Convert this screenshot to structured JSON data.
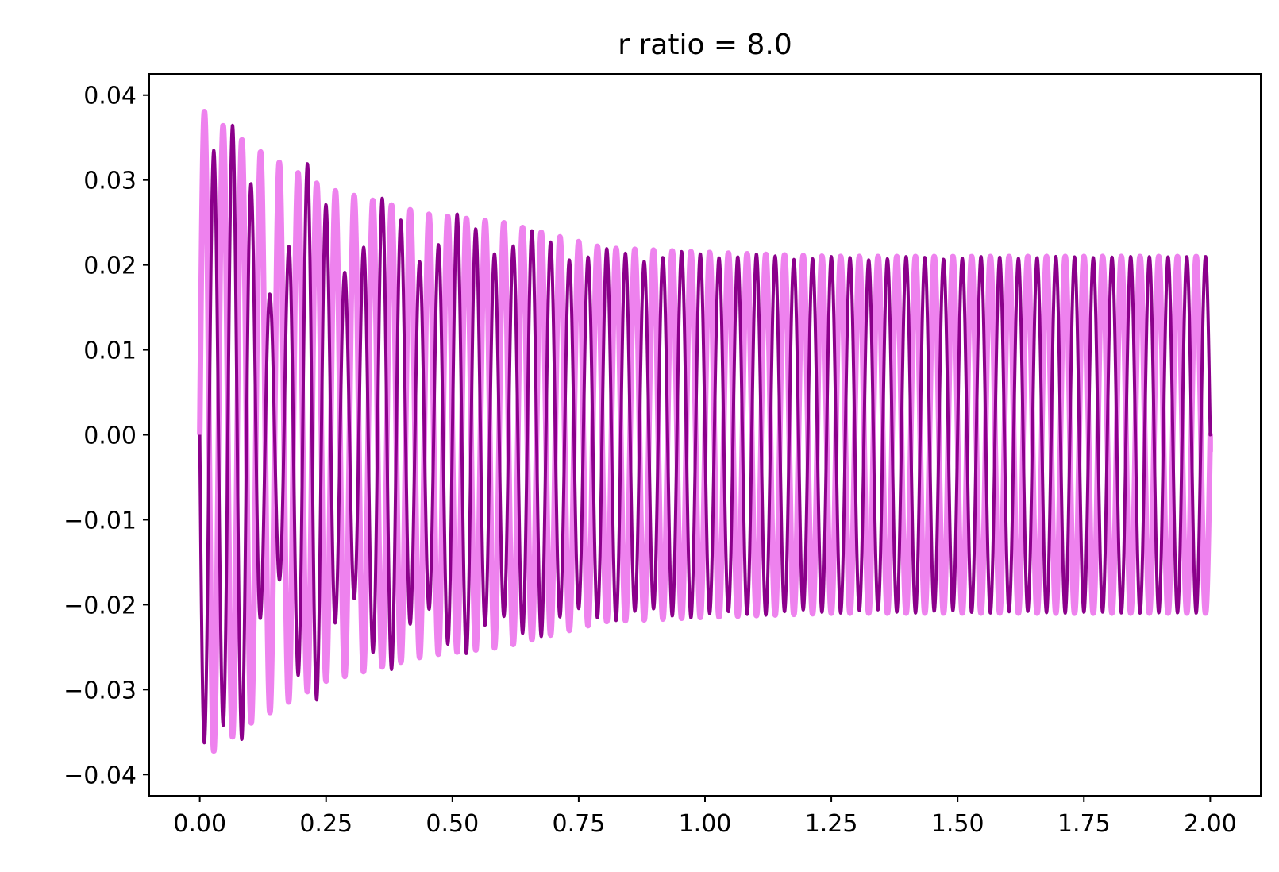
{
  "chart_data": {
    "type": "line",
    "title": "r ratio = 8.0",
    "xlabel": "",
    "ylabel": "",
    "xlim": [
      -0.1,
      2.1
    ],
    "ylim": [
      -0.0425,
      0.0425
    ],
    "grid": false,
    "x_ticks": [
      {
        "value": 0.0,
        "label": "0.00"
      },
      {
        "value": 0.25,
        "label": "0.25"
      },
      {
        "value": 0.5,
        "label": "0.50"
      },
      {
        "value": 0.75,
        "label": "0.75"
      },
      {
        "value": 1.0,
        "label": "1.00"
      },
      {
        "value": 1.25,
        "label": "1.25"
      },
      {
        "value": 1.5,
        "label": "1.50"
      },
      {
        "value": 1.75,
        "label": "1.75"
      },
      {
        "value": 2.0,
        "label": "2.00"
      }
    ],
    "y_ticks": [
      {
        "value": 0.04,
        "label": "0.04"
      },
      {
        "value": 0.03,
        "label": "0.03"
      },
      {
        "value": 0.02,
        "label": "0.02"
      },
      {
        "value": 0.01,
        "label": "0.01"
      },
      {
        "value": 0.0,
        "label": "0.00"
      },
      {
        "value": -0.01,
        "label": "−0.01"
      },
      {
        "value": -0.02,
        "label": "−0.02"
      },
      {
        "value": -0.03,
        "label": "−0.03"
      },
      {
        "value": -0.04,
        "label": "−0.04"
      }
    ],
    "series": [
      {
        "color": "#ee82ee",
        "x_range": [
          0.0,
          2.0
        ],
        "oscillation_cycles": 54,
        "phase": "sine",
        "envelope": [
          [
            0.0,
            0.0385
          ],
          [
            0.1,
            0.034
          ],
          [
            0.25,
            0.029
          ],
          [
            0.45,
            0.026
          ],
          [
            0.6,
            0.025
          ],
          [
            0.8,
            0.022
          ],
          [
            1.0,
            0.0215
          ],
          [
            1.25,
            0.021
          ],
          [
            2.0,
            0.021
          ]
        ],
        "end_value": -0.002
      },
      {
        "color": "#8b008b",
        "x_range": [
          0.0,
          2.0
        ],
        "oscillation_cycles": 54,
        "phase": "negative-sine",
        "envelope": [
          [
            0.0,
            0.0385
          ],
          [
            0.15,
            0.035
          ],
          [
            0.3,
            0.029
          ],
          [
            0.45,
            0.027
          ],
          [
            0.6,
            0.025
          ],
          [
            0.8,
            0.022
          ],
          [
            1.0,
            0.0215
          ],
          [
            1.25,
            0.021
          ],
          [
            2.0,
            0.021
          ]
        ],
        "beat_modulation": [
          [
            0.0,
            0.0
          ],
          [
            0.1,
            0.6
          ],
          [
            0.3,
            0.35
          ],
          [
            0.6,
            0.15
          ],
          [
            1.0,
            0.03
          ],
          [
            2.0,
            0.0
          ]
        ],
        "end_value": 0.0015
      }
    ]
  }
}
